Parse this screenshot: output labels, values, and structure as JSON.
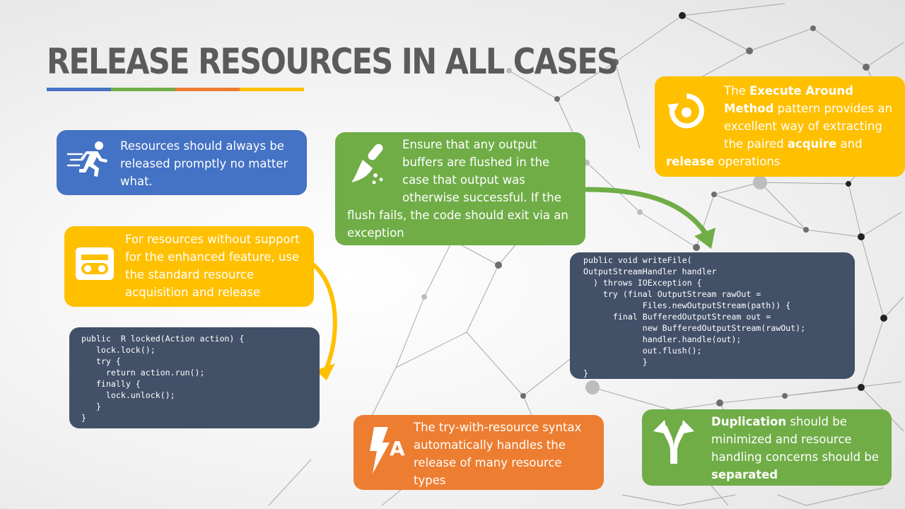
{
  "slide": {
    "title": "RELEASE RESOURCES IN ALL CASES",
    "title_rule_colors": [
      "#4472c4",
      "#70ad47",
      "#ed7d31",
      "#ffc000"
    ]
  },
  "cards": {
    "prompt_release": {
      "icon": "running-person-icon",
      "color": "#4472c4",
      "text": "Resources should always be released promptly no matter what."
    },
    "flush": {
      "icon": "broom-icon",
      "color": "#70ad47",
      "text": "Ensure that any output buffers are flushed in the case that output was otherwise successful. If the flush fails, the code should exit via an exception"
    },
    "execute_around": {
      "icon": "rotate-icon",
      "color": "#ffc000",
      "pre": "The ",
      "bold1": "Execute Around Method",
      "mid1": " pattern provides an excellent way of extracting the paired ",
      "bold2": "acquire",
      "mid2": " and ",
      "bold3": "release",
      "post": " operations"
    },
    "standard": {
      "icon": "cassette-icon",
      "color": "#ffc000",
      "text": "For resources without support for the enhanced feature, use the standard resource acquisition and release"
    },
    "try_with": {
      "icon": "lightning-a-icon",
      "color": "#ed7d31",
      "text": "The try-with-resource syntax automatically handles the release of many resource types"
    },
    "duplication": {
      "icon": "split-arrow-icon",
      "color": "#70ad47",
      "bold1": "Duplication",
      "mid": " should be minimized and resource handling concerns should be ",
      "bold2": "separated"
    }
  },
  "code": {
    "locked": "public  R locked(Action action) {\n   lock.lock();\n   try {\n     return action.run();\n   finally {\n     lock.unlock();\n   }\n}",
    "write_file": "public void writeFile(\nOutputStreamHandler handler\n  ) throws IOException {\n    try (final OutputStream rawOut =\n            Files.newOutputStream(path)) {\n      final BufferedOutputStream out =\n            new BufferedOutputStream(rawOut);\n            handler.handle(out);\n            out.flush();\n            }\n}"
  }
}
